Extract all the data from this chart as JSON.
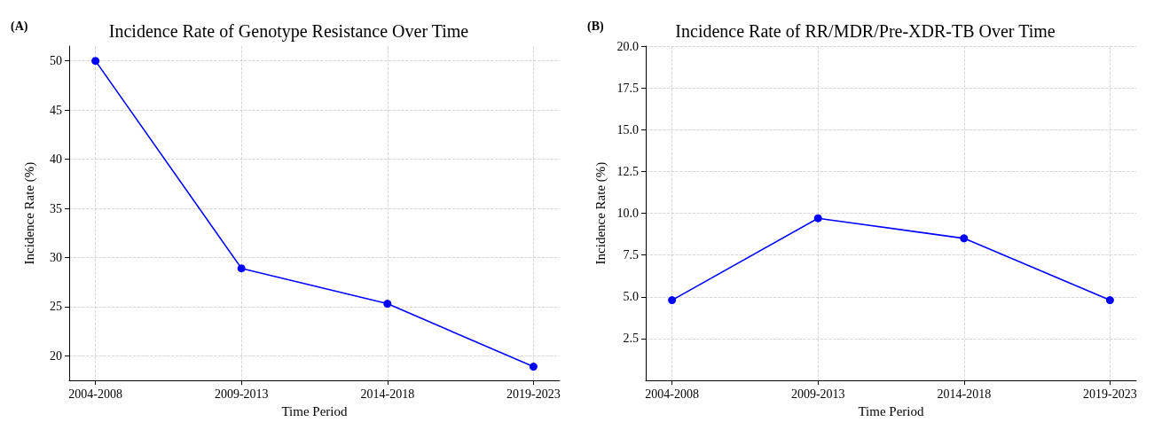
{
  "chart_data": [
    {
      "type": "line",
      "title": "Incidence Rate of Genotype Resistance Over Time",
      "xlabel": "Time Period",
      "ylabel": "Incidence Rate (%)",
      "annotations": [
        "(A)"
      ],
      "categories": [
        "2004-2008",
        "2009-2013",
        "2014-2018",
        "2019-2023"
      ],
      "series": [
        {
          "color": "#0000ff",
          "values": [
            50.0,
            28.9,
            25.3,
            18.9
          ]
        }
      ],
      "ylim": [
        17.5,
        51.5
      ],
      "yticks": [
        20,
        25,
        30,
        35,
        40,
        45,
        50
      ],
      "grid": true,
      "marker": "circle",
      "line_style": "solid"
    },
    {
      "type": "line",
      "title": "Incidence Rate of RR/MDR/Pre-XDR-TB Over Time",
      "xlabel": "Time Period",
      "ylabel": "Incidence Rate (%)",
      "annotations": [
        "(B)"
      ],
      "categories": [
        "2004-2008",
        "2009-2013",
        "2014-2018",
        "2019-2023"
      ],
      "series": [
        {
          "color": "#0000ff",
          "values": [
            4.8,
            9.7,
            8.5,
            4.8
          ]
        }
      ],
      "ylim": [
        0,
        20
      ],
      "yticks": [
        {
          "value": 2.5,
          "label": "2.5"
        },
        {
          "value": 5,
          "label": "5.0"
        },
        {
          "value": 7.5,
          "label": "7.5"
        },
        {
          "value": 10,
          "label": "10.0"
        },
        {
          "value": 12.5,
          "label": "12.5"
        },
        {
          "value": 15,
          "label": "15.0"
        },
        {
          "value": 17.5,
          "label": "17.5"
        },
        {
          "value": 20,
          "label": "20.0"
        }
      ],
      "grid": true,
      "marker": "circle",
      "line_style": "solid"
    }
  ]
}
